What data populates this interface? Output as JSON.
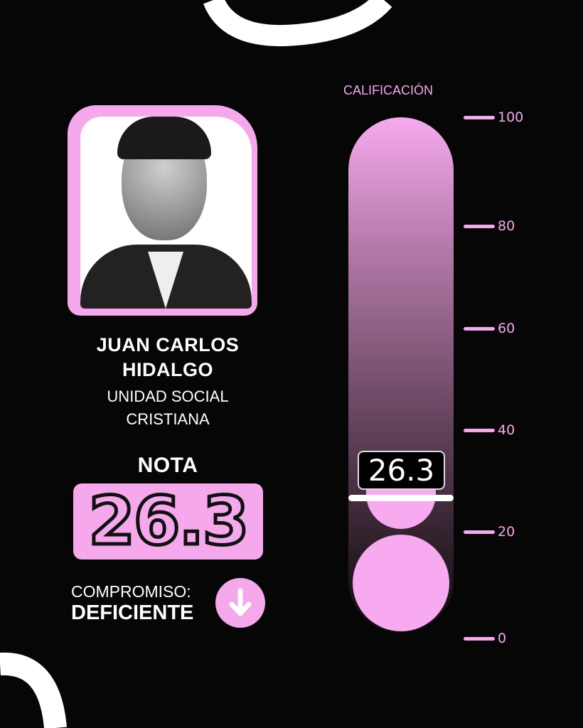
{
  "candidate": {
    "name_line1": "JUAN CARLOS",
    "name_line2": "HIDALGO",
    "party_line1": "UNIDAD SOCIAL",
    "party_line2": "CRISTIANA"
  },
  "score": {
    "label": "NOTA",
    "value": "26.3",
    "commitment_label": "COMPROMISO:",
    "commitment_value": "DEFICIENTE",
    "trend_icon": "arrow-down-icon"
  },
  "gauge": {
    "title": "CALIFICACIÓN",
    "value": 26.3,
    "value_label": "26.3",
    "ticks": [
      "100",
      "80",
      "60",
      "40",
      "20",
      "0"
    ],
    "range": [
      0,
      100
    ]
  },
  "colors": {
    "accent": "#f5a8ec",
    "background": "#060606"
  }
}
